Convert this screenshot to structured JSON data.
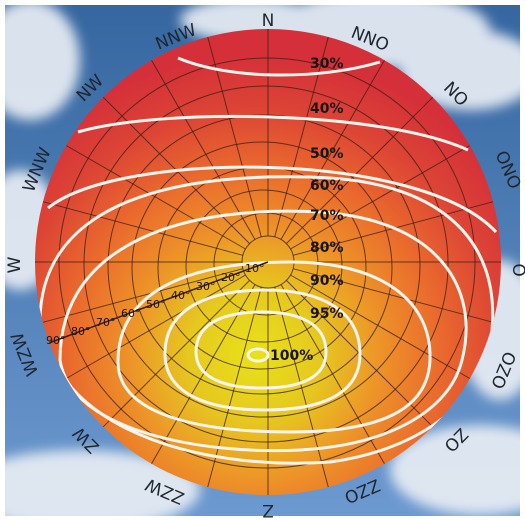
{
  "compass": {
    "n": "N",
    "nno": "NNO",
    "no": "NO",
    "ono": "ONO",
    "o": "O",
    "ozo": "OZO",
    "zo": "ZO",
    "zzo": "ZZO",
    "z": "Z",
    "zzw": "ZZW",
    "zw": "ZW",
    "wzw": "WZW",
    "w": "W",
    "wnw": "WNW",
    "nw": "NW",
    "nnw": "NNW"
  },
  "efficiency": {
    "p30": "30%",
    "p40": "40%",
    "p50": "50%",
    "p60": "60%",
    "p70": "70%",
    "p80": "80%",
    "p90": "90%",
    "p95": "95%",
    "p100": "100%"
  },
  "tilt_angles": {
    "a10": "10°",
    "a20": "20°",
    "a30": "30°",
    "a40": "40°",
    "a50": "50°",
    "a60": "60°",
    "a70": "70°",
    "a80": "80°",
    "a90": "90°"
  },
  "colors": {
    "sky_top": "#3c6fb0",
    "sky_bottom": "#6f9cd0",
    "cloud": "#e9eef5",
    "disc_red": "#d9343a",
    "disc_orange": "#ec6a2e",
    "disc_yellow": "#e6d21e",
    "contour": "#fbf4ec",
    "grid": "#3a1e12"
  }
}
